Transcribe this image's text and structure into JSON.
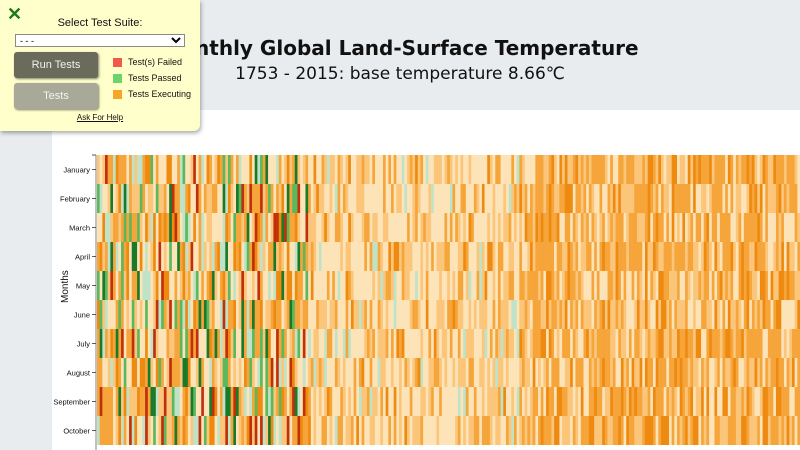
{
  "page": {
    "title": "Monthly Global Land-Surface Temperature",
    "subtitle": "1753 - 2015: base temperature 8.66℃"
  },
  "test_panel": {
    "close_icon": "✕",
    "select_label": "Select Test Suite:",
    "select_value": "- - -",
    "run_button": "Run Tests",
    "tests_button": "Tests",
    "legend": [
      {
        "label": "Test(s) Failed",
        "color": "#f05a4a"
      },
      {
        "label": "Tests Passed",
        "color": "#6cd46c"
      },
      {
        "label": "Tests Executing",
        "color": "#f4a52a"
      }
    ],
    "help_link": "Ask For Help"
  },
  "chart_data": {
    "type": "heatmap",
    "title": "Monthly Global Land-Surface Temperature",
    "subtitle": "1753 - 2015: base temperature 8.66℃",
    "ylabel": "Months",
    "y_categories": [
      "January",
      "February",
      "March",
      "April",
      "May",
      "June",
      "July",
      "August",
      "September",
      "October"
    ],
    "x_range": [
      1753,
      2015
    ],
    "note": ""
  },
  "colors": {
    "very_cold": "#1a7a2a",
    "cold": "#5cb85c",
    "cool": "#bfe3c8",
    "neutral": "#fde3b8",
    "warm": "#fbc57a",
    "warmer": "#f5a53a",
    "hot": "#ee8a10",
    "very_hot": "#c0300a"
  }
}
